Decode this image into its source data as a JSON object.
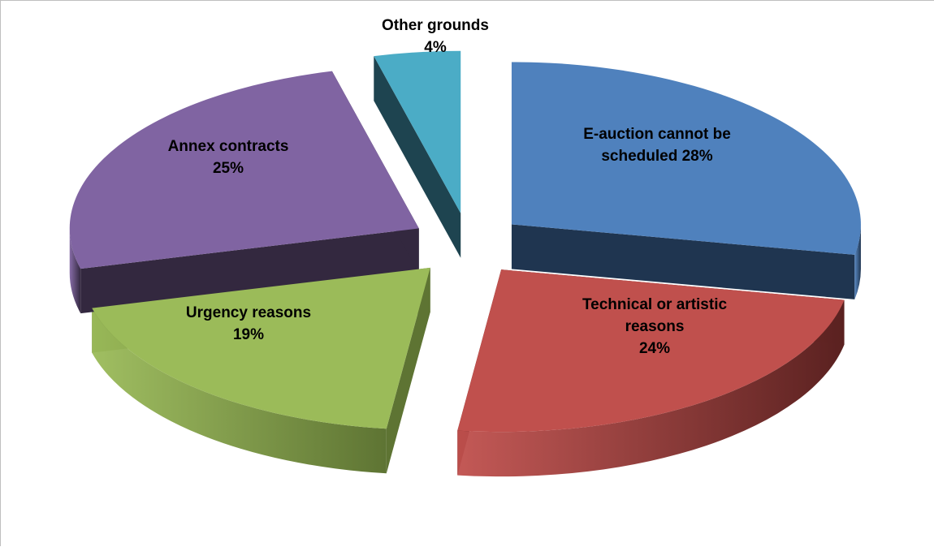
{
  "chart_data": {
    "type": "pie",
    "style": "3d-exploded",
    "slices": [
      {
        "label_lines": [
          "E-auction cannot be",
          "scheduled 28%"
        ],
        "name": "E-auction cannot be scheduled",
        "value": 28,
        "color": "#4F81BD",
        "side_color": "#1F3550"
      },
      {
        "label_lines": [
          "Technical or artistic",
          "reasons",
          "24%"
        ],
        "name": "Technical or artistic reasons",
        "value": 24,
        "color": "#C0504D",
        "side_color": "#5A2120"
      },
      {
        "label_lines": [
          "Urgency reasons",
          "19%"
        ],
        "name": "Urgency reasons",
        "value": 19,
        "color": "#9BBB59",
        "side_color": "#5E7433"
      },
      {
        "label_lines": [
          "Annex contracts",
          "25%"
        ],
        "name": "Annex contracts",
        "value": 25,
        "color": "#8064A2",
        "side_color": "#33283F"
      },
      {
        "label_lines": [
          "Other grounds",
          "4%"
        ],
        "name": "Other grounds",
        "value": 4,
        "color": "#4BACC6",
        "side_color": "#1E4450"
      }
    ]
  }
}
